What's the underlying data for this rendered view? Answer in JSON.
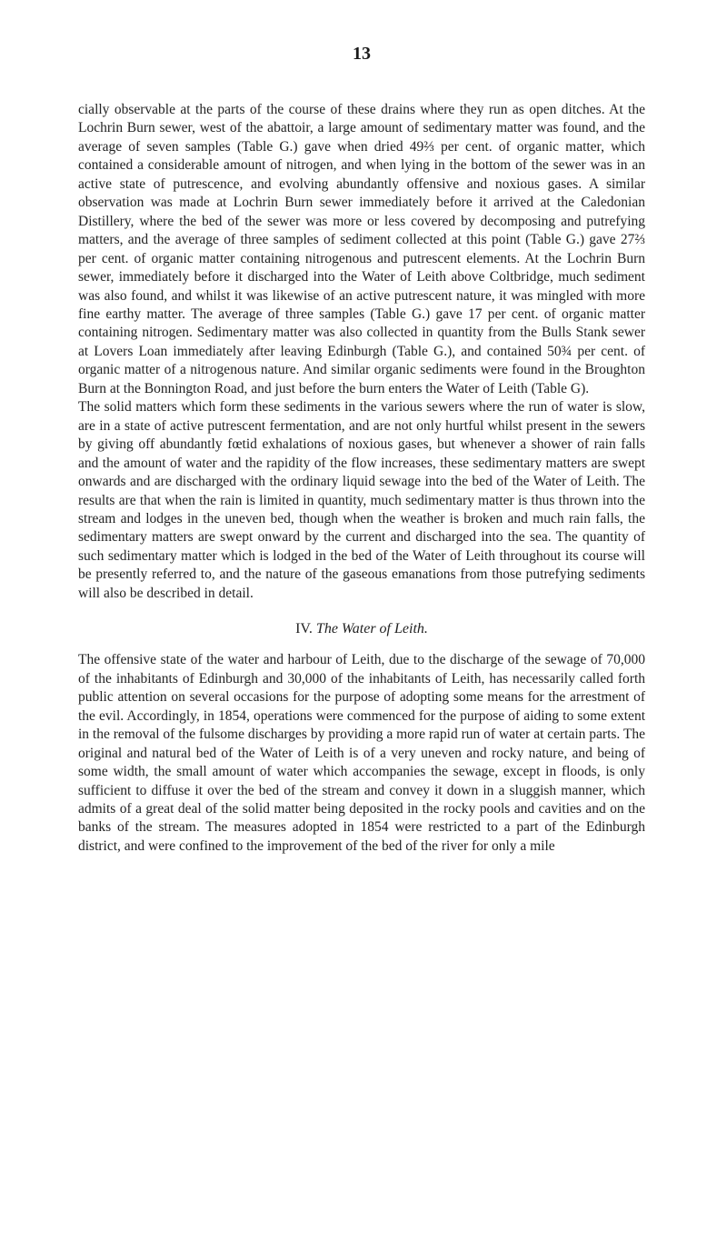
{
  "page_number": "13",
  "paragraph1": "cially observable at the parts of the course of these drains where they run as open ditches. At the Lochrin Burn sewer, west of the abattoir, a large amount of sedimentary matter was found, and the average of seven samples (Table G.) gave when dried 49⅔ per cent. of organic matter, which contained a considerable amount of nitrogen, and when lying in the bottom of the sewer was in an active state of putrescence, and evolving abundantly offensive and noxious gases. A similar observation was made at Lochrin Burn sewer immediately before it arrived at the Caledonian Distillery, where the bed of the sewer was more or less covered by decomposing and putrefying matters, and the average of three samples of sediment collected at this point (Table G.) gave 27⅔ per cent. of organic matter containing nitrogenous and putrescent elements. At the Lochrin Burn sewer, immediately before it discharged into the Water of Leith above Coltbridge, much sediment was also found, and whilst it was likewise of an active putrescent nature, it was mingled with more fine earthy matter. The average of three samples (Table G.) gave 17 per cent. of organic matter containing nitrogen. Sedimentary matter was also collected in quantity from the Bulls Stank sewer at Lovers Loan immediately after leaving Edinburgh (Table G.), and contained 50¾ per cent. of organic matter of a nitrogenous nature. And similar organic sediments were found in the Broughton Burn at the Bonnington Road, and just before the burn enters the Water of Leith (Table G).",
  "paragraph2": "The solid matters which form these sediments in the various sewers where the run of water is slow, are in a state of active putrescent fermentation, and are not only hurtful whilst present in the sewers by giving off abundantly fœtid exhalations of noxious gases, but whenever a shower of rain falls and the amount of water and the rapidity of the flow increases, these sedimentary matters are swept onwards and are discharged with the ordinary liquid sewage into the bed of the Water of Leith. The results are that when the rain is limited in quantity, much sedimentary matter is thus thrown into the stream and lodges in the uneven bed, though when the weather is broken and much rain falls, the sedimentary matters are swept onward by the current and discharged into the sea. The quantity of such sedimentary matter which is lodged in the bed of the Water of Leith throughout its course will be presently referred to, and the nature of the gaseous emanations from those putrefying sediments will also be described in detail.",
  "section_number": "IV.",
  "section_title": "The Water of Leith.",
  "paragraph3": "The offensive state of the water and harbour of Leith, due to the discharge of the sewage of 70,000 of the inhabitants of Edinburgh and 30,000 of the inhabitants of Leith, has necessarily called forth public attention on several occasions for the purpose of adopting some means for the arrestment of the evil. Accordingly, in 1854, operations were commenced for the purpose of aiding to some extent in the removal of the fulsome discharges by providing a more rapid run of water at certain parts. The original and natural bed of the Water of Leith is of a very uneven and rocky nature, and being of some width, the small amount of water which accompanies the sewage, except in floods, is only sufficient to diffuse it over the bed of the stream and convey it down in a sluggish manner, which admits of a great deal of the solid matter being deposited in the rocky pools and cavities and on the banks of the stream. The measures adopted in 1854 were restricted to a part of the Edinburgh district, and were confined to the improvement of the bed of the river for only a mile"
}
